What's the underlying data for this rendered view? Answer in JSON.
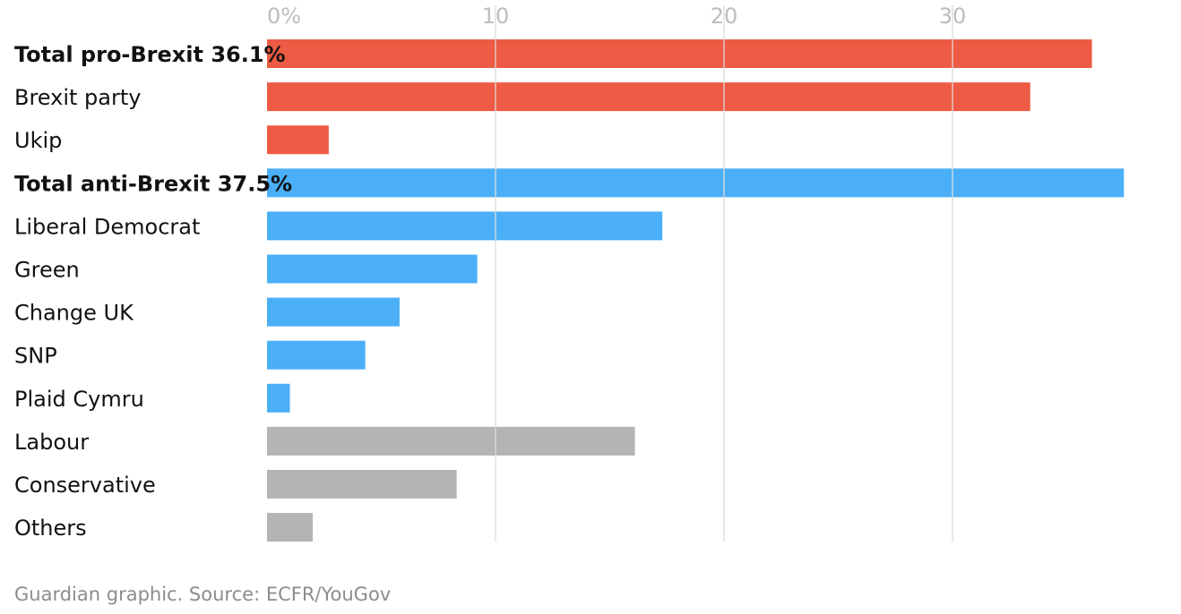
{
  "chart_data": {
    "type": "bar",
    "orientation": "horizontal",
    "categories": [
      "Total pro-Brexit 36.1%",
      "Brexit party",
      "Ukip",
      "Total anti-Brexit 37.5%",
      "Liberal Democrat",
      "Green",
      "Change UK",
      "SNP",
      "Plaid Cymru",
      "Labour",
      "Conservative",
      "Others"
    ],
    "values": [
      36.1,
      33.4,
      2.7,
      37.5,
      17.3,
      9.2,
      5.8,
      4.3,
      1.0,
      16.1,
      8.3,
      2.0
    ],
    "groups": [
      "pro",
      "pro",
      "pro",
      "anti",
      "anti",
      "anti",
      "anti",
      "anti",
      "anti",
      "other",
      "other",
      "other"
    ],
    "bold": [
      true,
      false,
      false,
      true,
      false,
      false,
      false,
      false,
      false,
      false,
      false,
      false
    ],
    "colors": {
      "pro": "#ee5b44",
      "anti": "#4baff7",
      "other": "#b4b4b4",
      "gridline": "#dcdcdc"
    },
    "xlim": [
      0,
      40
    ],
    "xticks": [
      {
        "value": 0,
        "label": "0%"
      },
      {
        "value": 10,
        "label": "10"
      },
      {
        "value": 20,
        "label": "20"
      },
      {
        "value": 30,
        "label": "30"
      }
    ],
    "grid": true,
    "legend": "none"
  },
  "footer": {
    "source": "Guardian graphic. Source: ECFR/YouGov"
  }
}
